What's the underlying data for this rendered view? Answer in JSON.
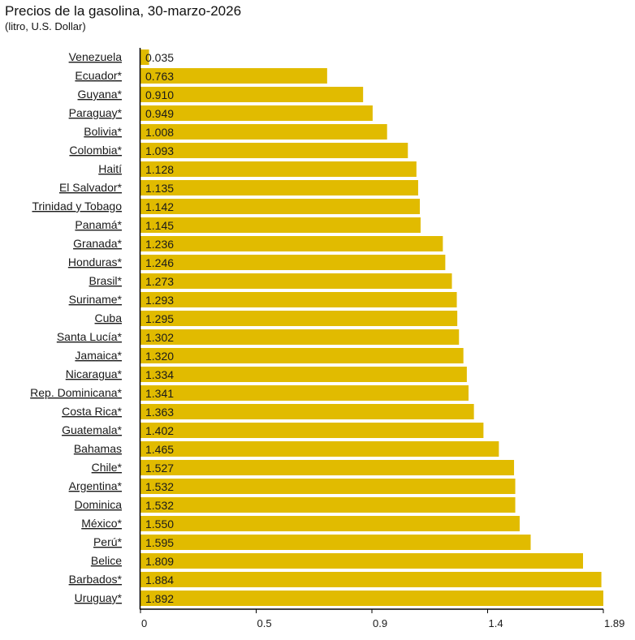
{
  "header": {
    "title": "Precios de la gasolina, 30-marzo-2026",
    "subtitle": "(litro, U.S. Dollar)"
  },
  "colors": {
    "bar": "#e1bb00",
    "axis": "#000000",
    "text": "#1a1a1a"
  },
  "chart_data": {
    "type": "bar",
    "orientation": "horizontal",
    "title": "Precios de la gasolina, 30-marzo-2026",
    "subtitle": "(litro, U.S. Dollar)",
    "xlabel": "",
    "ylabel": "",
    "xlim": [
      0,
      1.892
    ],
    "x_ticks": [
      {
        "value": 0,
        "label": "0"
      },
      {
        "value": 0.473,
        "label": "0.5"
      },
      {
        "value": 0.946,
        "label": "0.9"
      },
      {
        "value": 1.419,
        "label": "1.4"
      },
      {
        "value": 1.892,
        "label": "1.89"
      }
    ],
    "grid": false,
    "legend": "none",
    "categories": [
      "Venezuela ",
      "Ecuador*",
      "Guyana*",
      "Paraguay*",
      "Bolivia*",
      "Colombia*",
      "Haití ",
      "El Salvador*",
      "Trinidad y Tobago ",
      "Panamá*",
      "Granada*",
      "Honduras*",
      "Brasil*",
      "Suriname*",
      "Cuba ",
      "Santa Lucía*",
      "Jamaica*",
      "Nicaragua*",
      "Rep. Dominicana*",
      "Costa Rica*",
      "Guatemala*",
      "Bahamas ",
      "Chile*",
      "Argentina*",
      "Dominica ",
      "México*",
      "Perú*",
      "Belice ",
      "Barbados*",
      "Uruguay*"
    ],
    "values": [
      0.035,
      0.763,
      0.91,
      0.949,
      1.008,
      1.093,
      1.128,
      1.135,
      1.142,
      1.145,
      1.236,
      1.246,
      1.273,
      1.293,
      1.295,
      1.302,
      1.32,
      1.334,
      1.341,
      1.363,
      1.402,
      1.465,
      1.527,
      1.532,
      1.532,
      1.55,
      1.595,
      1.809,
      1.884,
      1.892
    ],
    "value_labels": [
      "0.035",
      "0.763",
      "0.910",
      "0.949",
      "1.008",
      "1.093",
      "1.128",
      "1.135",
      "1.142",
      "1.145",
      "1.236",
      "1.246",
      "1.273",
      "1.293",
      "1.295",
      "1.302",
      "1.320",
      "1.334",
      "1.341",
      "1.363",
      "1.402",
      "1.465",
      "1.527",
      "1.532",
      "1.532",
      "1.550",
      "1.595",
      "1.809",
      "1.884",
      "1.892"
    ]
  }
}
